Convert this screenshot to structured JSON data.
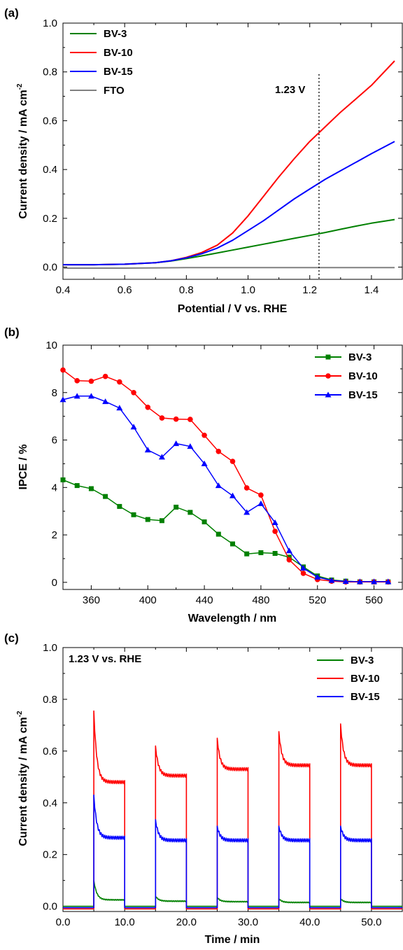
{
  "chart_data": [
    {
      "panel": "(a)",
      "type": "line",
      "xlabel": "Potential / V vs. RHE",
      "ylabel": "Current density / mA cm",
      "ylabel_sup": "-2",
      "xlim": [
        0.4,
        1.5
      ],
      "ylim": [
        -0.05,
        1.0
      ],
      "xticks": [
        0.4,
        0.6,
        0.8,
        1.0,
        1.2,
        1.4
      ],
      "yticks": [
        0.0,
        0.2,
        0.4,
        0.6,
        0.8,
        1.0
      ],
      "tick_decimals": 1,
      "legend_position": "top-left",
      "annotation": "1.23 V",
      "marker_x": 1.23,
      "series": [
        {
          "name": "BV-3",
          "color": "#008000",
          "x": [
            0.4,
            0.5,
            0.6,
            0.7,
            0.75,
            0.8,
            0.85,
            0.9,
            0.95,
            1.0,
            1.05,
            1.1,
            1.15,
            1.2,
            1.25,
            1.3,
            1.35,
            1.4,
            1.475
          ],
          "y": [
            0.01,
            0.01,
            0.012,
            0.018,
            0.025,
            0.035,
            0.046,
            0.058,
            0.07,
            0.082,
            0.094,
            0.106,
            0.118,
            0.13,
            0.142,
            0.155,
            0.168,
            0.18,
            0.195
          ]
        },
        {
          "name": "BV-10",
          "color": "#ff0000",
          "x": [
            0.4,
            0.5,
            0.6,
            0.7,
            0.75,
            0.8,
            0.85,
            0.9,
            0.95,
            1.0,
            1.05,
            1.1,
            1.15,
            1.2,
            1.25,
            1.3,
            1.35,
            1.4,
            1.475
          ],
          "y": [
            0.01,
            0.01,
            0.012,
            0.018,
            0.026,
            0.04,
            0.06,
            0.09,
            0.14,
            0.21,
            0.29,
            0.37,
            0.445,
            0.515,
            0.575,
            0.635,
            0.69,
            0.745,
            0.845
          ]
        },
        {
          "name": "BV-15",
          "color": "#0000ff",
          "x": [
            0.4,
            0.5,
            0.6,
            0.7,
            0.75,
            0.8,
            0.85,
            0.9,
            0.95,
            1.0,
            1.05,
            1.1,
            1.15,
            1.2,
            1.25,
            1.3,
            1.35,
            1.4,
            1.475
          ],
          "y": [
            0.01,
            0.01,
            0.012,
            0.018,
            0.026,
            0.038,
            0.055,
            0.078,
            0.11,
            0.15,
            0.19,
            0.235,
            0.28,
            0.32,
            0.36,
            0.395,
            0.43,
            0.465,
            0.515
          ]
        },
        {
          "name": "FTO",
          "color": "#808080",
          "x": [
            0.4,
            0.6,
            0.8,
            1.0,
            1.2,
            1.4,
            1.475
          ],
          "y": [
            -0.004,
            -0.004,
            -0.002,
            -0.002,
            -0.002,
            -0.002,
            -0.002
          ]
        }
      ]
    },
    {
      "panel": "(b)",
      "type": "line",
      "xlabel": "Wavelength / nm",
      "ylabel": "IPCE / %",
      "xlim": [
        340,
        580
      ],
      "ylim": [
        -0.3,
        10
      ],
      "xticks": [
        360,
        400,
        440,
        480,
        520,
        560
      ],
      "yticks": [
        0,
        2,
        4,
        6,
        8,
        10
      ],
      "tick_decimals": 0,
      "legend_position": "top-right",
      "x": [
        340,
        350,
        360,
        370,
        380,
        390,
        400,
        410,
        420,
        430,
        440,
        450,
        460,
        470,
        480,
        490,
        500,
        510,
        520,
        530,
        540,
        550,
        560,
        570
      ],
      "series": [
        {
          "name": "BV-3",
          "color": "#008000",
          "marker": "square",
          "values": [
            4.32,
            4.08,
            3.95,
            3.62,
            3.2,
            2.85,
            2.65,
            2.6,
            3.17,
            2.95,
            2.55,
            2.03,
            1.62,
            1.2,
            1.25,
            1.22,
            1.06,
            0.65,
            0.27,
            0.1,
            0.05,
            0.02,
            0.02,
            0.02
          ]
        },
        {
          "name": "BV-10",
          "color": "#ff0000",
          "marker": "circle",
          "values": [
            8.95,
            8.5,
            8.48,
            8.68,
            8.45,
            8.0,
            7.38,
            6.93,
            6.88,
            6.87,
            6.2,
            5.52,
            5.1,
            3.98,
            3.68,
            2.15,
            0.95,
            0.38,
            0.12,
            0.05,
            0.02,
            0.02,
            0.02,
            0.02
          ]
        },
        {
          "name": "BV-15",
          "color": "#0000ff",
          "marker": "triangle",
          "values": [
            7.7,
            7.85,
            7.85,
            7.62,
            7.35,
            6.55,
            5.58,
            5.28,
            5.85,
            5.73,
            5.0,
            4.08,
            3.65,
            2.95,
            3.32,
            2.52,
            1.33,
            0.6,
            0.22,
            0.08,
            0.04,
            0.03,
            0.03,
            0.03
          ]
        }
      ]
    },
    {
      "panel": "(c)",
      "type": "line",
      "xlabel": "Time / min",
      "ylabel": "Current density / mA cm",
      "ylabel_sup": "-2",
      "xlim": [
        0,
        55
      ],
      "ylim": [
        -0.02,
        1.0
      ],
      "xticks": [
        0,
        10,
        20,
        30,
        40,
        50
      ],
      "yticks": [
        0.0,
        0.2,
        0.4,
        0.6,
        0.8,
        1.0
      ],
      "tick_decimals": 1,
      "legend_position": "top-right",
      "annotation": "1.23 V vs. RHE",
      "cycles": [
        5,
        15,
        25,
        35,
        45
      ],
      "light_duration": 5,
      "series": [
        {
          "name": "BV-3",
          "color": "#008000",
          "dark": 0.0,
          "peak": [
            0.1,
            0.04,
            0.035,
            0.03,
            0.03
          ],
          "plateau": [
            0.025,
            0.02,
            0.018,
            0.015,
            0.015
          ]
        },
        {
          "name": "BV-10",
          "color": "#ff0000",
          "dark": -0.01,
          "peak": [
            0.755,
            0.62,
            0.65,
            0.675,
            0.705
          ],
          "plateau": [
            0.48,
            0.505,
            0.53,
            0.545,
            0.545
          ]
        },
        {
          "name": "BV-15",
          "color": "#0000ff",
          "dark": -0.005,
          "peak": [
            0.43,
            0.335,
            0.31,
            0.31,
            0.31
          ],
          "plateau": [
            0.265,
            0.255,
            0.255,
            0.255,
            0.255
          ]
        }
      ]
    }
  ]
}
